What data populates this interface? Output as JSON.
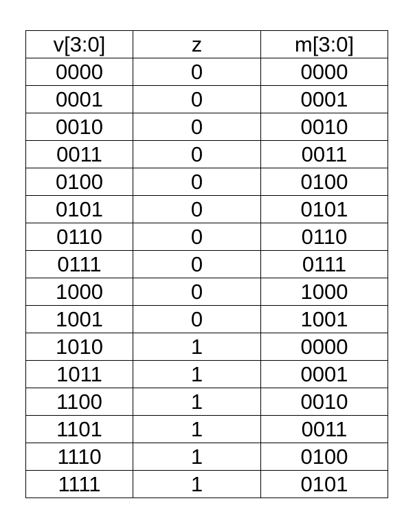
{
  "table": {
    "headers": [
      "v[3:0]",
      "z",
      "m[3:0]"
    ],
    "rows": [
      [
        "0000",
        "0",
        "0000"
      ],
      [
        "0001",
        "0",
        "0001"
      ],
      [
        "0010",
        "0",
        "0010"
      ],
      [
        "0011",
        "0",
        "0011"
      ],
      [
        "0100",
        "0",
        "0100"
      ],
      [
        "0101",
        "0",
        "0101"
      ],
      [
        "0110",
        "0",
        "0110"
      ],
      [
        "0111",
        "0",
        "0111"
      ],
      [
        "1000",
        "0",
        "1000"
      ],
      [
        "1001",
        "0",
        "1001"
      ],
      [
        "1010",
        "1",
        "0000"
      ],
      [
        "1011",
        "1",
        "0001"
      ],
      [
        "1100",
        "1",
        "0010"
      ],
      [
        "1101",
        "1",
        "0011"
      ],
      [
        "1110",
        "1",
        "0100"
      ],
      [
        "1111",
        "1",
        "0101"
      ]
    ]
  }
}
